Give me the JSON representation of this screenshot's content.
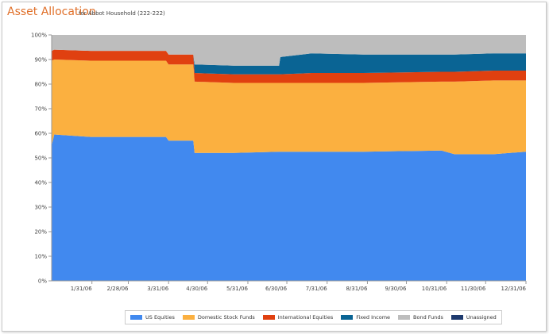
{
  "header": {
    "title": "Asset Allocation",
    "subtitle": "for Abbot Household (222-222)"
  },
  "chart_data": {
    "type": "area",
    "stacked": true,
    "xlabel": "",
    "ylabel": "",
    "ylim": [
      0,
      100
    ],
    "y_ticks": [
      "0%",
      "10%",
      "20%",
      "30%",
      "40%",
      "50%",
      "60%",
      "70%",
      "80%",
      "90%",
      "100%"
    ],
    "x_ticks": [
      {
        "day": 31,
        "label": "1/31/06"
      },
      {
        "day": 59,
        "label": "2/28/06"
      },
      {
        "day": 90,
        "label": "3/31/06"
      },
      {
        "day": 120,
        "label": "4/30/06"
      },
      {
        "day": 151,
        "label": "5/31/06"
      },
      {
        "day": 181,
        "label": "6/30/06"
      },
      {
        "day": 212,
        "label": "7/31/06"
      },
      {
        "day": 243,
        "label": "8/31/06"
      },
      {
        "day": 273,
        "label": "9/30/06"
      },
      {
        "day": 304,
        "label": "10/31/06"
      },
      {
        "day": 334,
        "label": "11/30/06"
      },
      {
        "day": 365,
        "label": "12/31/06"
      }
    ],
    "x_days": [
      0,
      2,
      30,
      88,
      90,
      109,
      110,
      140,
      175,
      176,
      200,
      240,
      300,
      310,
      340,
      365
    ],
    "series": [
      {
        "name": "US Equities",
        "color": "#4189ef",
        "values": [
          55,
          59.5,
          58.5,
          58.5,
          57,
          57,
          52,
          52,
          52.5,
          52.5,
          52.5,
          52.5,
          53,
          51.5,
          51.5,
          52.5
        ]
      },
      {
        "name": "Domestic Stock Funds",
        "color": "#fbb040",
        "values": [
          34.5,
          30.5,
          31,
          31,
          31,
          31,
          29,
          28.5,
          28,
          28,
          28,
          28,
          28,
          29.5,
          30,
          29
        ]
      },
      {
        "name": "International Equities",
        "color": "#e04010",
        "values": [
          4,
          4,
          4,
          4,
          4,
          4,
          3.5,
          3.5,
          3.5,
          3.5,
          4,
          4,
          4,
          4,
          4,
          4
        ]
      },
      {
        "name": "Fixed Income",
        "color": "#0a6494",
        "values": [
          0,
          0,
          0,
          0,
          0,
          0,
          3.5,
          3.5,
          3.5,
          7,
          8,
          7.5,
          7,
          7,
          7,
          7
        ]
      },
      {
        "name": "Bond Funds",
        "color": "#bdbdbd",
        "values": [
          6.5,
          6,
          6.5,
          6.5,
          8,
          8,
          12,
          12.5,
          12.5,
          9,
          7.5,
          8,
          8,
          8,
          7.5,
          7.5
        ]
      },
      {
        "name": "Unassigned",
        "color": "#1e3a6e",
        "values": [
          0,
          0,
          0,
          0,
          0,
          0,
          0,
          0,
          0,
          0,
          0,
          0,
          0,
          0,
          0,
          0
        ]
      }
    ],
    "legend": "bottom"
  }
}
